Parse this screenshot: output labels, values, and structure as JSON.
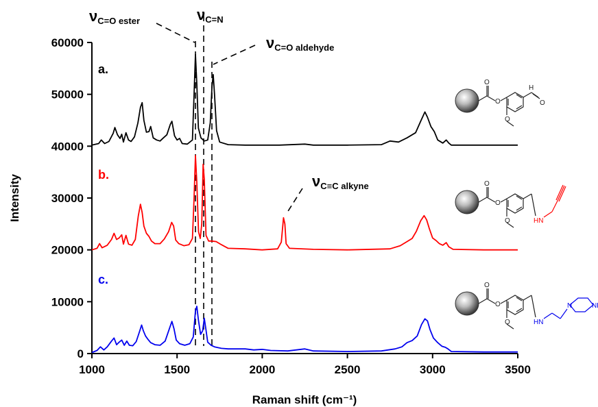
{
  "chart_data": {
    "type": "line",
    "xlabel": "Raman shift (cm⁻¹)",
    "ylabel": "Intensity",
    "xlim": [
      1000,
      3500
    ],
    "ylim": [
      0,
      60000
    ],
    "xticks": [
      "1000",
      "1500",
      "2000",
      "2500",
      "3000",
      "3500"
    ],
    "yticks": [
      "0",
      "10000",
      "20000",
      "30000",
      "40000",
      "50000",
      "60000"
    ],
    "grid": false,
    "series": [
      {
        "name": "a.",
        "color": "#000000",
        "baseline": 40200,
        "points": [
          [
            1000,
            40200
          ],
          [
            1040,
            40500
          ],
          [
            1055,
            41200
          ],
          [
            1075,
            40500
          ],
          [
            1100,
            40900
          ],
          [
            1125,
            42500
          ],
          [
            1135,
            43600
          ],
          [
            1150,
            42200
          ],
          [
            1165,
            41500
          ],
          [
            1175,
            42300
          ],
          [
            1185,
            40800
          ],
          [
            1200,
            42600
          ],
          [
            1215,
            41200
          ],
          [
            1230,
            40900
          ],
          [
            1250,
            41800
          ],
          [
            1270,
            44500
          ],
          [
            1285,
            47500
          ],
          [
            1295,
            48400
          ],
          [
            1305,
            45000
          ],
          [
            1320,
            42700
          ],
          [
            1335,
            42800
          ],
          [
            1345,
            43800
          ],
          [
            1360,
            41600
          ],
          [
            1380,
            41200
          ],
          [
            1400,
            41000
          ],
          [
            1420,
            41600
          ],
          [
            1440,
            42200
          ],
          [
            1460,
            44200
          ],
          [
            1470,
            44800
          ],
          [
            1485,
            42000
          ],
          [
            1500,
            41200
          ],
          [
            1515,
            41500
          ],
          [
            1530,
            40500
          ],
          [
            1560,
            40400
          ],
          [
            1590,
            41200
          ],
          [
            1600,
            50000
          ],
          [
            1608,
            57700
          ],
          [
            1616,
            52000
          ],
          [
            1625,
            43500
          ],
          [
            1640,
            41600
          ],
          [
            1660,
            41000
          ],
          [
            1680,
            41200
          ],
          [
            1695,
            44500
          ],
          [
            1705,
            51500
          ],
          [
            1712,
            53800
          ],
          [
            1720,
            50000
          ],
          [
            1732,
            43000
          ],
          [
            1750,
            40800
          ],
          [
            1800,
            40300
          ],
          [
            1900,
            40200
          ],
          [
            2000,
            40200
          ],
          [
            2100,
            40200
          ],
          [
            2250,
            40400
          ],
          [
            2300,
            40200
          ],
          [
            2500,
            40200
          ],
          [
            2700,
            40300
          ],
          [
            2750,
            41000
          ],
          [
            2800,
            40800
          ],
          [
            2850,
            41600
          ],
          [
            2900,
            42600
          ],
          [
            2930,
            44800
          ],
          [
            2955,
            46600
          ],
          [
            2970,
            45600
          ],
          [
            2990,
            43800
          ],
          [
            3010,
            42800
          ],
          [
            3030,
            41200
          ],
          [
            3060,
            40600
          ],
          [
            3080,
            41200
          ],
          [
            3095,
            40600
          ],
          [
            3110,
            40200
          ],
          [
            3300,
            40200
          ],
          [
            3500,
            40200
          ]
        ]
      },
      {
        "name": "b.",
        "color": "#ff0000",
        "baseline": 20000,
        "points": [
          [
            1000,
            20000
          ],
          [
            1030,
            20300
          ],
          [
            1045,
            21200
          ],
          [
            1060,
            20400
          ],
          [
            1090,
            20900
          ],
          [
            1115,
            22000
          ],
          [
            1130,
            23200
          ],
          [
            1145,
            22000
          ],
          [
            1160,
            22300
          ],
          [
            1175,
            22900
          ],
          [
            1185,
            21100
          ],
          [
            1200,
            22800
          ],
          [
            1215,
            21100
          ],
          [
            1235,
            20900
          ],
          [
            1255,
            22000
          ],
          [
            1272,
            26500
          ],
          [
            1285,
            28800
          ],
          [
            1295,
            27200
          ],
          [
            1305,
            24600
          ],
          [
            1320,
            23200
          ],
          [
            1335,
            22600
          ],
          [
            1350,
            21700
          ],
          [
            1370,
            21200
          ],
          [
            1400,
            21200
          ],
          [
            1425,
            22100
          ],
          [
            1450,
            23500
          ],
          [
            1468,
            25300
          ],
          [
            1480,
            24600
          ],
          [
            1492,
            21900
          ],
          [
            1510,
            21200
          ],
          [
            1540,
            20800
          ],
          [
            1570,
            21000
          ],
          [
            1590,
            22200
          ],
          [
            1600,
            30000
          ],
          [
            1608,
            38200
          ],
          [
            1616,
            33000
          ],
          [
            1626,
            23500
          ],
          [
            1636,
            22200
          ],
          [
            1645,
            25000
          ],
          [
            1653,
            36500
          ],
          [
            1660,
            33600
          ],
          [
            1670,
            22800
          ],
          [
            1685,
            21700
          ],
          [
            1705,
            21700
          ],
          [
            1730,
            21600
          ],
          [
            1760,
            21000
          ],
          [
            1800,
            20300
          ],
          [
            1900,
            20200
          ],
          [
            2000,
            20000
          ],
          [
            2090,
            20200
          ],
          [
            2112,
            21500
          ],
          [
            2125,
            26200
          ],
          [
            2133,
            25000
          ],
          [
            2140,
            21200
          ],
          [
            2160,
            20300
          ],
          [
            2300,
            20100
          ],
          [
            2500,
            20000
          ],
          [
            2750,
            20200
          ],
          [
            2810,
            20800
          ],
          [
            2850,
            21600
          ],
          [
            2880,
            22200
          ],
          [
            2905,
            23600
          ],
          [
            2930,
            25600
          ],
          [
            2950,
            26600
          ],
          [
            2965,
            25800
          ],
          [
            2980,
            24200
          ],
          [
            3000,
            22300
          ],
          [
            3020,
            21800
          ],
          [
            3040,
            21200
          ],
          [
            3060,
            20900
          ],
          [
            3080,
            21400
          ],
          [
            3095,
            20600
          ],
          [
            3120,
            20100
          ],
          [
            3300,
            20000
          ],
          [
            3500,
            20000
          ]
        ]
      },
      {
        "name": "c.",
        "color": "#0000ee",
        "baseline": 200,
        "points": [
          [
            1000,
            200
          ],
          [
            1030,
            600
          ],
          [
            1050,
            1300
          ],
          [
            1070,
            700
          ],
          [
            1090,
            1300
          ],
          [
            1115,
            2400
          ],
          [
            1130,
            3000
          ],
          [
            1145,
            1700
          ],
          [
            1160,
            2200
          ],
          [
            1175,
            2600
          ],
          [
            1190,
            1600
          ],
          [
            1205,
            2400
          ],
          [
            1220,
            1600
          ],
          [
            1240,
            1500
          ],
          [
            1260,
            2300
          ],
          [
            1280,
            4300
          ],
          [
            1292,
            5500
          ],
          [
            1302,
            4400
          ],
          [
            1315,
            3400
          ],
          [
            1330,
            2700
          ],
          [
            1345,
            2100
          ],
          [
            1370,
            1700
          ],
          [
            1400,
            1600
          ],
          [
            1430,
            2400
          ],
          [
            1455,
            4800
          ],
          [
            1470,
            6200
          ],
          [
            1482,
            4800
          ],
          [
            1495,
            2600
          ],
          [
            1515,
            1900
          ],
          [
            1545,
            1600
          ],
          [
            1575,
            1900
          ],
          [
            1595,
            3200
          ],
          [
            1608,
            8200
          ],
          [
            1616,
            9100
          ],
          [
            1625,
            6500
          ],
          [
            1638,
            3700
          ],
          [
            1650,
            4400
          ],
          [
            1660,
            6800
          ],
          [
            1668,
            5000
          ],
          [
            1680,
            2200
          ],
          [
            1700,
            1600
          ],
          [
            1720,
            1300
          ],
          [
            1760,
            1000
          ],
          [
            1800,
            900
          ],
          [
            1900,
            900
          ],
          [
            1950,
            700
          ],
          [
            2000,
            800
          ],
          [
            2050,
            600
          ],
          [
            2150,
            500
          ],
          [
            2250,
            900
          ],
          [
            2300,
            500
          ],
          [
            2500,
            400
          ],
          [
            2700,
            500
          ],
          [
            2780,
            900
          ],
          [
            2820,
            1300
          ],
          [
            2850,
            2100
          ],
          [
            2880,
            2500
          ],
          [
            2910,
            3400
          ],
          [
            2935,
            5600
          ],
          [
            2955,
            6700
          ],
          [
            2970,
            6300
          ],
          [
            2985,
            4600
          ],
          [
            3005,
            3000
          ],
          [
            3030,
            2100
          ],
          [
            3055,
            1400
          ],
          [
            3075,
            1200
          ],
          [
            3090,
            900
          ],
          [
            3110,
            400
          ],
          [
            3300,
            300
          ],
          [
            3500,
            300
          ]
        ]
      }
    ],
    "annotations": [
      {
        "main": "ν",
        "sub": "C=O ester"
      },
      {
        "main": "ν",
        "sub": "C=N"
      },
      {
        "main": "ν",
        "sub": "C=O aldehyde"
      },
      {
        "main": "ν",
        "sub": "C≡C alkyne"
      }
    ],
    "structure_labels": {
      "ester_o": "O",
      "methoxy_o": "O",
      "aldehyde_o": "O",
      "aldehyde_h": "H",
      "amine_alkyne": "HN",
      "amine_piperazine": "HN",
      "piperazine_n1": "N",
      "piperazine_n2": "NH"
    },
    "colors": {
      "a": "#000000",
      "b": "#ff0000",
      "c": "#0000ee"
    }
  }
}
